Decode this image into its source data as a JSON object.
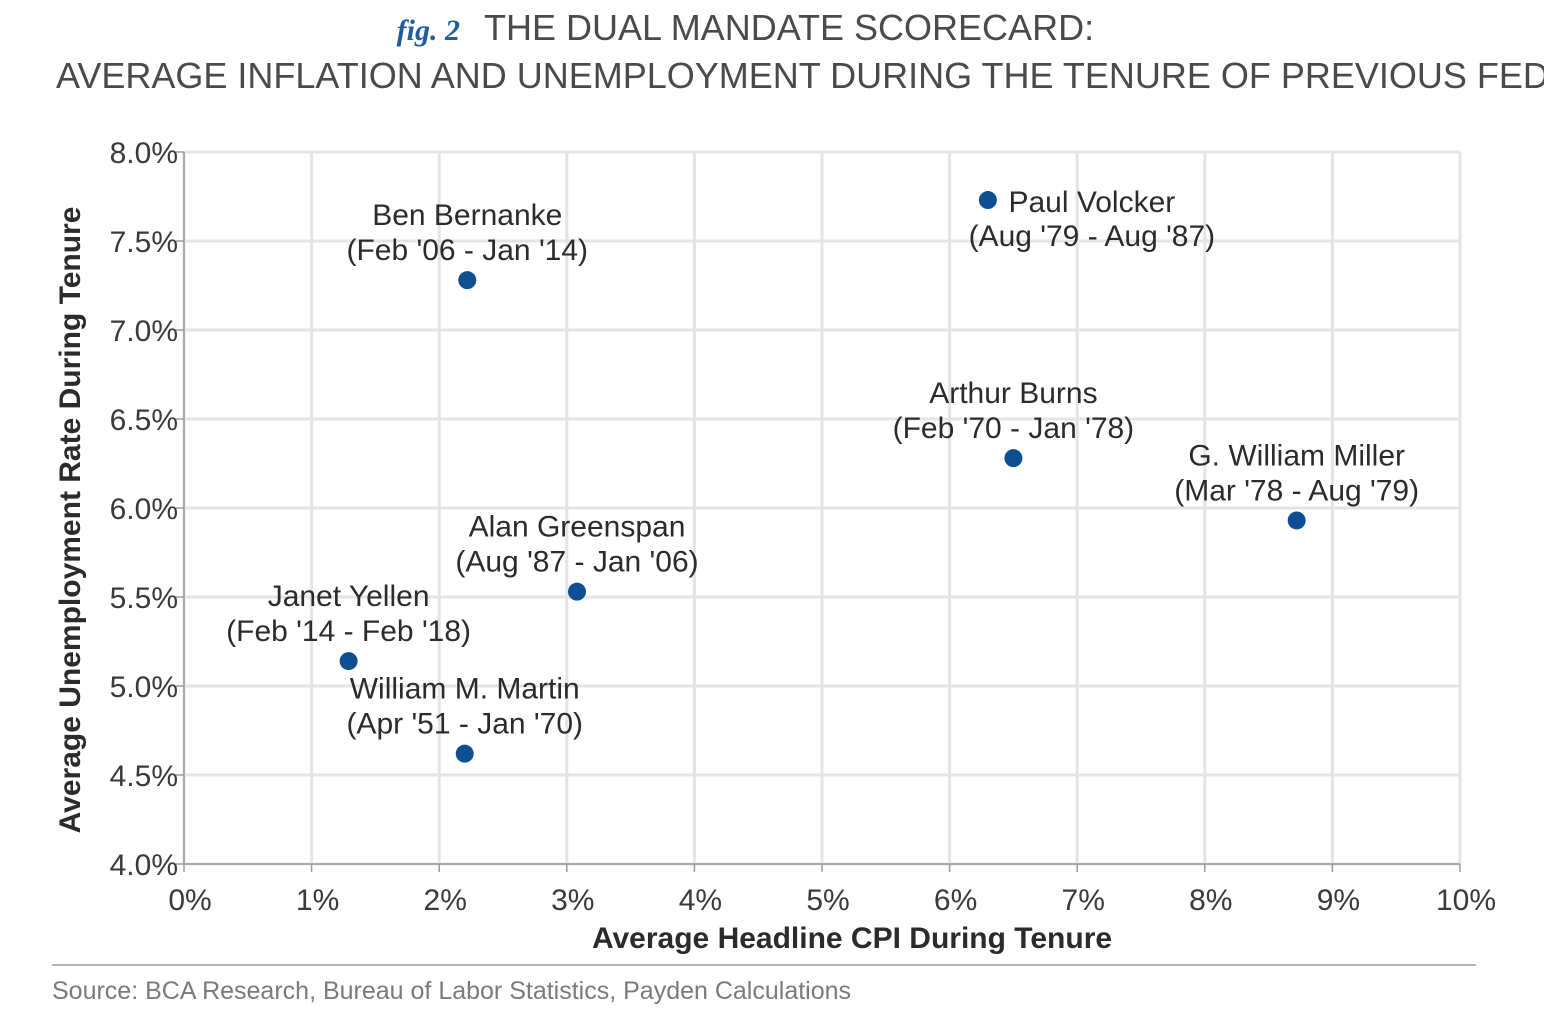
{
  "header": {
    "fig_label": "fig. 2",
    "title_line1": "THE DUAL MANDATE SCORECARD:",
    "title_line2": "AVERAGE INFLATION AND UNEMPLOYMENT DURING THE TENURE OF PREVIOUS FED CHAIRS"
  },
  "source": "Source: BCA Research, Bureau of Labor Statistics, Payden Calculations",
  "colors": {
    "point": "#0d4f92",
    "title": "#4a4a4a",
    "fig_label": "#1f5d9e",
    "axis_title": "#2b2b2b",
    "tick": "#3a3a3a",
    "grid": "#e4e4e4",
    "axis_line": "#9a9a9a",
    "source": "#7a7a7a"
  },
  "chart_data": {
    "type": "scatter",
    "title": "THE DUAL MANDATE SCORECARD: AVERAGE INFLATION AND UNEMPLOYMENT DURING THE TENURE OF PREVIOUS FED CHAIRS",
    "xlabel": "Average Headline CPI During Tenure",
    "ylabel": "Average Unemployment Rate During Tenure",
    "xlim": [
      0,
      10
    ],
    "ylim": [
      4.0,
      8.0
    ],
    "x_ticks": [
      0,
      1,
      2,
      3,
      4,
      5,
      6,
      7,
      8,
      9,
      10
    ],
    "x_tick_labels": [
      "0%",
      "1%",
      "2%",
      "3%",
      "4%",
      "5%",
      "6%",
      "7%",
      "8%",
      "9%",
      "10%"
    ],
    "y_ticks": [
      4.0,
      4.5,
      5.0,
      5.5,
      6.0,
      6.5,
      7.0,
      7.5,
      8.0
    ],
    "y_tick_labels": [
      "4.0%",
      "4.5%",
      "5.0%",
      "5.5%",
      "6.0%",
      "6.5%",
      "7.0%",
      "7.5%",
      "8.0%"
    ],
    "grid": true,
    "legend": "none",
    "points": [
      {
        "name": "Paul Volcker",
        "tenure": "(Aug '79 - Aug '87)",
        "x": 6.3,
        "y": 7.73,
        "label": "right"
      },
      {
        "name": "Ben Bernanke",
        "tenure": "(Feb '06 - Jan '14)",
        "x": 2.22,
        "y": 7.28,
        "label": "above"
      },
      {
        "name": "Arthur Burns",
        "tenure": "(Feb '70 - Jan '78)",
        "x": 6.5,
        "y": 6.28,
        "label": "above"
      },
      {
        "name": "G. William Miller",
        "tenure": "(Mar '78 - Aug '79)",
        "x": 8.72,
        "y": 5.93,
        "label": "above"
      },
      {
        "name": "Alan Greenspan",
        "tenure": "(Aug '87 - Jan '06)",
        "x": 3.08,
        "y": 5.53,
        "label": "above"
      },
      {
        "name": "Janet Yellen",
        "tenure": "(Feb '14 - Feb '18)",
        "x": 1.29,
        "y": 5.14,
        "label": "above"
      },
      {
        "name": "William M. Martin",
        "tenure": "(Apr '51 - Jan '70)",
        "x": 2.2,
        "y": 4.62,
        "label": "above"
      }
    ]
  }
}
